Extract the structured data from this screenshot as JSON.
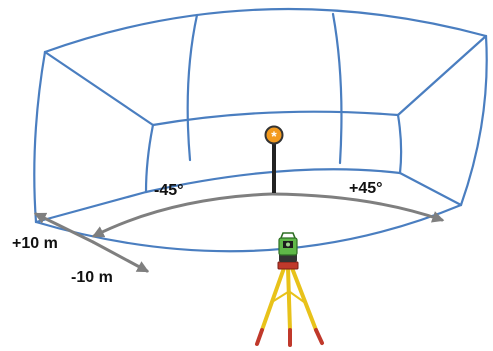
{
  "labels": {
    "left_angle": "-45°",
    "right_angle": "+45°",
    "plus_range": "+10 m",
    "minus_range": "-10 m"
  },
  "icons": {
    "target": "prism-target-icon",
    "instrument": "total-station-icon"
  },
  "colors": {
    "frame": "#4a7ec0",
    "dimension_arrows": "#7f7f7f",
    "target_orange": "#f39a1e",
    "tripod_legs": "#e8c21a",
    "tripod_feet": "#c0392b",
    "instrument_green": "#5fb848"
  }
}
